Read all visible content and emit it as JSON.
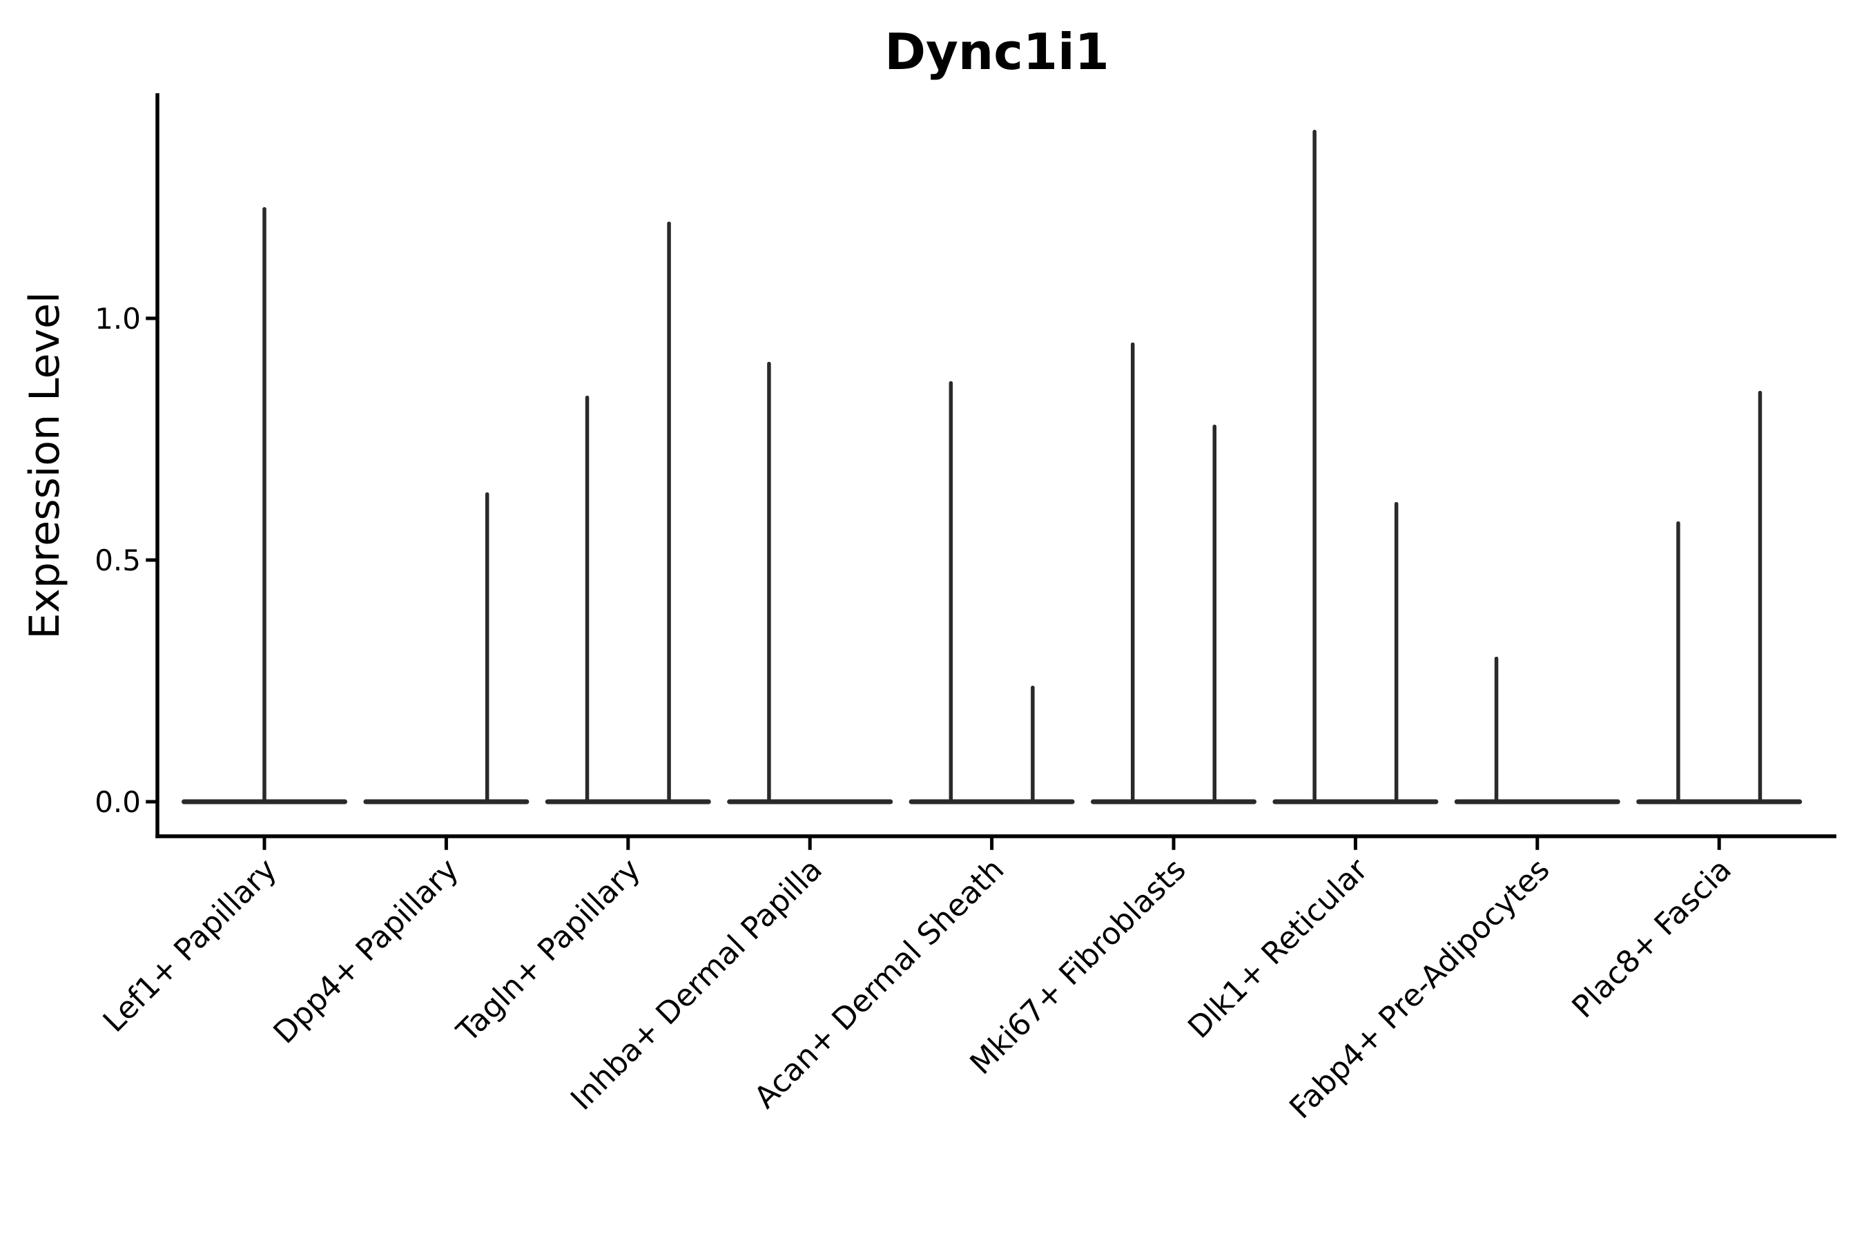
{
  "chart_data": {
    "type": "violin",
    "title": "Dync1i1",
    "xlabel": "",
    "ylabel": "Expression Level",
    "yticks": [
      "0.0",
      "0.5",
      "1.0"
    ],
    "ytick_values": [
      0.0,
      0.5,
      1.0
    ],
    "ylim": [
      -0.07,
      1.47
    ],
    "grid": false,
    "legend": "none",
    "colors": {
      "ink": "#000000",
      "violin": "#2a2a2a",
      "background": "#ffffff"
    },
    "categories": [
      "Lef1+ Papillary",
      "Dpp4+ Papillary",
      "Tagln+ Papillary",
      "Inhba+ Dermal Papilla",
      "Acan+ Dermal Sheath",
      "Mki67+ Fibroblasts",
      "Dlk1+ Reticular",
      "Fabp4+ Pre-Adipocytes",
      "Plac8+ Fascia"
    ],
    "violins": [
      {
        "category": "Lef1+ Papillary",
        "base_value": 0.0,
        "spikes": [
          {
            "offset_frac": 0.0,
            "max": 1.23
          }
        ]
      },
      {
        "category": "Dpp4+ Papillary",
        "base_value": 0.0,
        "spikes": [
          {
            "offset_frac": 0.225,
            "max": 0.64
          }
        ]
      },
      {
        "category": "Tagln+ Papillary",
        "base_value": 0.0,
        "spikes": [
          {
            "offset_frac": -0.225,
            "max": 0.84
          },
          {
            "offset_frac": 0.225,
            "max": 1.2
          }
        ]
      },
      {
        "category": "Inhba+ Dermal Papilla",
        "base_value": 0.0,
        "spikes": [
          {
            "offset_frac": -0.225,
            "max": 0.91
          }
        ]
      },
      {
        "category": "Acan+ Dermal Sheath",
        "base_value": 0.0,
        "spikes": [
          {
            "offset_frac": -0.225,
            "max": 0.87
          },
          {
            "offset_frac": 0.225,
            "max": 0.24
          }
        ]
      },
      {
        "category": "Mki67+ Fibroblasts",
        "base_value": 0.0,
        "spikes": [
          {
            "offset_frac": -0.225,
            "max": 0.95
          },
          {
            "offset_frac": 0.225,
            "max": 0.78
          }
        ]
      },
      {
        "category": "Dlk1+ Reticular",
        "base_value": 0.0,
        "spikes": [
          {
            "offset_frac": -0.225,
            "max": 1.39
          },
          {
            "offset_frac": 0.225,
            "max": 0.62
          }
        ]
      },
      {
        "category": "Fabp4+ Pre-Adipocytes",
        "base_value": 0.0,
        "spikes": [
          {
            "offset_frac": -0.225,
            "max": 0.3
          }
        ]
      },
      {
        "category": "Plac8+ Fascia",
        "base_value": 0.0,
        "spikes": [
          {
            "offset_frac": -0.225,
            "max": 0.58
          },
          {
            "offset_frac": 0.225,
            "max": 0.85
          }
        ]
      }
    ]
  }
}
